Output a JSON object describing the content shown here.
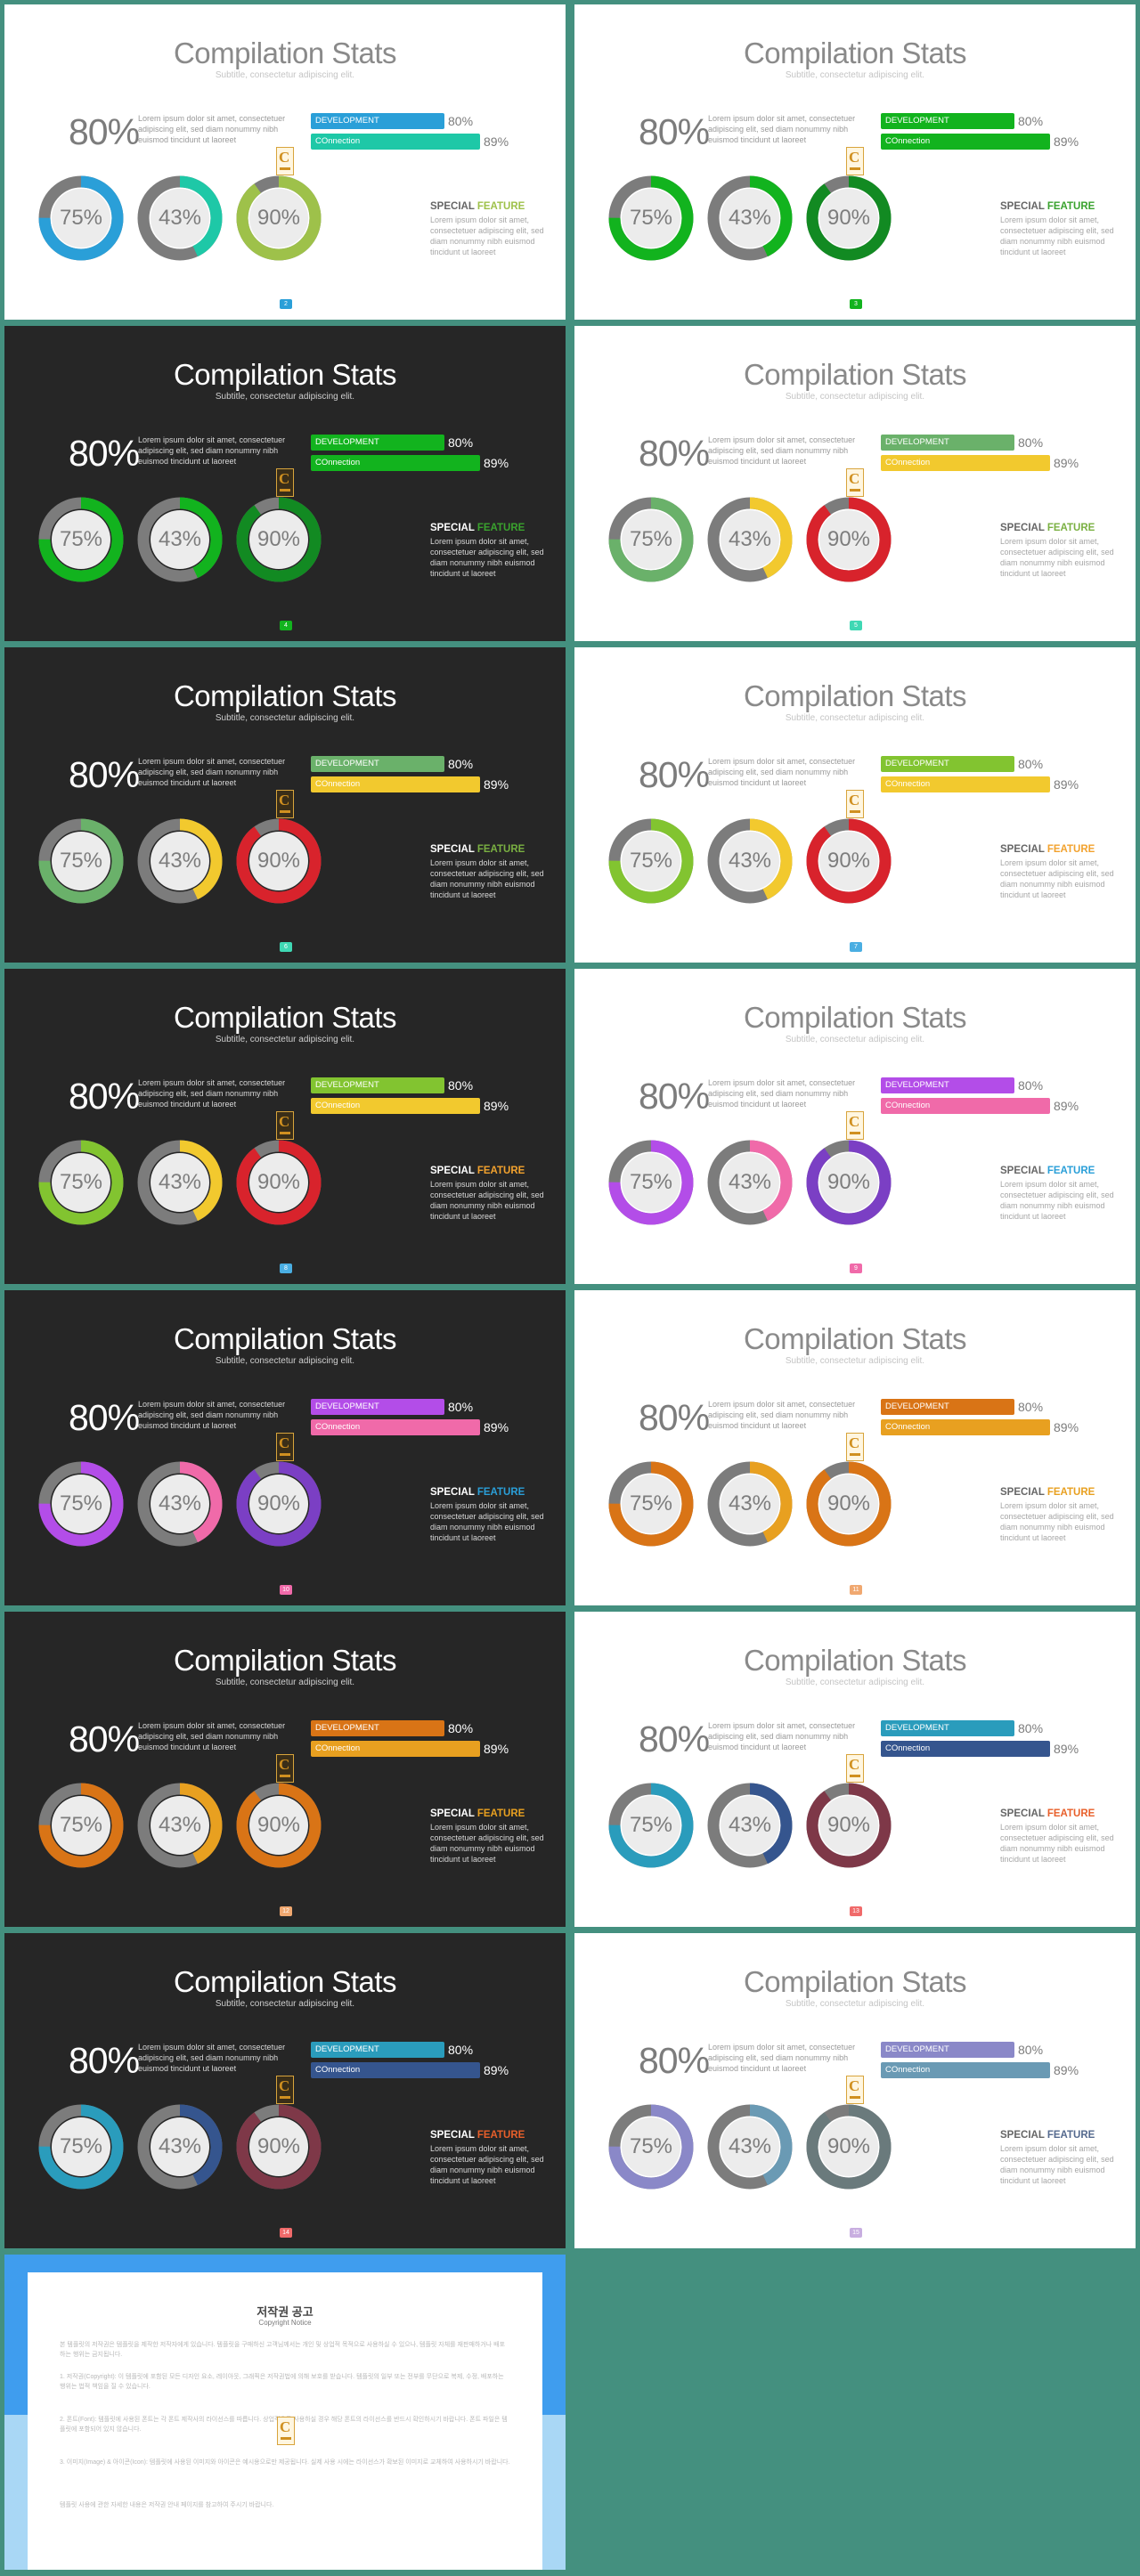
{
  "common": {
    "title": "Compilation Stats",
    "subtitle": "Subtitle, consectetur adipiscing elit.",
    "big_pct": "80%",
    "desc": "Lorem ipsum dolor sit amet, consectetuer adipiscing elit, sed diam nonummy nibh euismod tincidunt ut laoreet",
    "bar1_label": "DEVELOPMENT",
    "bar1_pct": "80%",
    "bar1_value": 80,
    "bar2_label": "COnnection",
    "bar2_pct": "89%",
    "bar2_value": 89,
    "donuts": [
      {
        "label": "75%",
        "value": 75
      },
      {
        "label": "43%",
        "value": 43
      },
      {
        "label": "90%",
        "value": 90
      }
    ],
    "feature_word1": "SPECIAL",
    "feature_word2": "FEATURE",
    "feature_desc": "Lorem ipsum dolor sit amet, consectetuer adipiscing elit, sed diam nonummy nibh euismod tincidunt ut laoreet",
    "logo_letter": "C"
  },
  "slides": [
    {
      "theme": "light",
      "page": "2",
      "c1": "#2a9fd8",
      "c2": "#1ec8a7",
      "c3": "#9ec14a",
      "c4": "#9ec14a",
      "c5": "#2a9fd8"
    },
    {
      "theme": "light",
      "page": "3",
      "c1": "#12b31e",
      "c2": "#12b31e",
      "c3": "#128a22",
      "c4": "#3aa22e",
      "c5": "#12b31e"
    },
    {
      "theme": "dark",
      "page": "4",
      "c1": "#12b31e",
      "c2": "#12b31e",
      "c3": "#128a22",
      "c4": "#3aa22e",
      "c5": "#12b31e"
    },
    {
      "theme": "light",
      "page": "5",
      "c1": "#6ab16a",
      "c2": "#f2c92e",
      "c3": "#d8232c",
      "c4": "#7ab042",
      "c5": "#3fd8b4"
    },
    {
      "theme": "dark",
      "page": "6",
      "c1": "#6ab16a",
      "c2": "#f2c92e",
      "c3": "#d8232c",
      "c4": "#7ab042",
      "c5": "#3fd8b4"
    },
    {
      "theme": "light",
      "page": "7",
      "c1": "#82c430",
      "c2": "#f2c92e",
      "c3": "#d8232c",
      "c4": "#f2a22e",
      "c5": "#4aaee2"
    },
    {
      "theme": "dark",
      "page": "8",
      "c1": "#82c430",
      "c2": "#f2c92e",
      "c3": "#d8232c",
      "c4": "#f2a22e",
      "c5": "#4aaee2"
    },
    {
      "theme": "light",
      "page": "9",
      "c1": "#b34de8",
      "c2": "#f06aa9",
      "c3": "#7b3fc4",
      "c4": "#2a9fd8",
      "c5": "#f06aa9"
    },
    {
      "theme": "dark",
      "page": "10",
      "c1": "#b34de8",
      "c2": "#f06aa9",
      "c3": "#7b3fc4",
      "c4": "#2a9fd8",
      "c5": "#f06aa9"
    },
    {
      "theme": "light",
      "page": "11",
      "c1": "#d97416",
      "c2": "#e8a020",
      "c3": "#d97416",
      "c4": "#e8a020",
      "c5": "#f0a870"
    },
    {
      "theme": "dark",
      "page": "12",
      "c1": "#d97416",
      "c2": "#e8a020",
      "c3": "#d97416",
      "c4": "#e8a020",
      "c5": "#f0a870"
    },
    {
      "theme": "light",
      "page": "13",
      "c1": "#2a9cbc",
      "c2": "#35558e",
      "c3": "#7e3848",
      "c4": "#e85f2a",
      "c5": "#f06a6a"
    },
    {
      "theme": "dark",
      "page": "14",
      "c1": "#2a9cbc",
      "c2": "#35558e",
      "c3": "#7e3848",
      "c4": "#e85f2a",
      "c5": "#f06a6a"
    },
    {
      "theme": "light",
      "page": "15",
      "c1": "#8a88c8",
      "c2": "#6a9ab4",
      "c3": "#6a7a7c",
      "c4": "#556a8e",
      "c5": "#c8aee0"
    }
  ],
  "notice": {
    "title": "저작권 공고",
    "subtitle": "Copyright Notice",
    "paragraphs": [
      "본 템플릿의 저작권은 템플릿을 제작한 저작자에게 있습니다. 템플릿을 구매하신 고객님께서는 개인 및 상업적 목적으로 사용하실 수 있으나, 템플릿 자체를 재판매하거나 배포하는 행위는 금지됩니다.",
      "1. 저작권(Copyright): 이 템플릿에 포함된 모든 디자인 요소, 레이아웃, 그래픽은 저작권법에 의해 보호를 받습니다. 템플릿의 일부 또는 전부를 무단으로 복제, 수정, 배포하는 행위는 법적 책임을 질 수 있습니다.",
      "2. 폰트(Font): 템플릿에 사용된 폰트는 각 폰트 제작사의 라이선스를 따릅니다. 상업적으로 사용하실 경우 해당 폰트의 라이선스를 반드시 확인하시기 바랍니다. 폰트 파일은 템플릿에 포함되어 있지 않습니다.",
      "3. 이미지(Image) & 아이콘(Icon): 템플릿에 사용된 이미지와 아이콘은 예시용으로만 제공됩니다. 실제 사용 시에는 라이선스가 확보된 이미지로 교체하여 사용하시기 바랍니다.",
      "템플릿 사용에 관한 자세한 내용은 저작권 안내 페이지를 참고하여 주시기 바랍니다."
    ]
  }
}
